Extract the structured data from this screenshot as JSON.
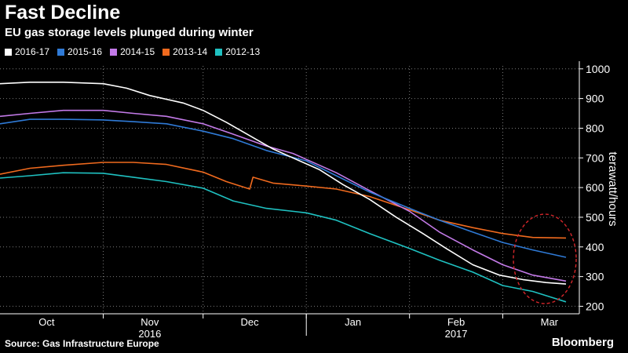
{
  "header": {
    "title": "Fast Decline",
    "subtitle": "EU gas storage levels plunged during winter"
  },
  "footer": {
    "source": "Source: Gas Infrastructure Europe",
    "brand": "Bloomberg"
  },
  "colors": {
    "2016-17": "#ffffff",
    "2015-16": "#2f7ad6",
    "2014-15": "#c37ae8",
    "2013-14": "#f06a1e",
    "2012-13": "#1fc1c1",
    "annotation": "#d4262a",
    "grid": "#7a7a7a"
  },
  "chart_data": {
    "type": "line",
    "title": "Fast Decline",
    "subtitle": "EU gas storage levels plunged during winter",
    "xlabel": "",
    "ylabel": "terawatt/hours",
    "x_ticks": [
      {
        "label": "Oct",
        "year": "",
        "date": "2016-10-15"
      },
      {
        "label": "Nov",
        "year": "2016",
        "date": "2016-11-15"
      },
      {
        "label": "Dec",
        "year": "",
        "date": "2016-12-15"
      },
      {
        "label": "Jan",
        "year": "",
        "date": "2017-01-15"
      },
      {
        "label": "Feb",
        "year": "2017",
        "date": "2017-02-15"
      },
      {
        "label": "Mar",
        "year": "",
        "date": "2017-03-15"
      }
    ],
    "xlim": [
      "2016-10-01",
      "2017-03-24"
    ],
    "y_ticks": [
      200,
      300,
      400,
      500,
      600,
      700,
      800,
      900,
      1000
    ],
    "ylim": [
      180,
      1010
    ],
    "grid": true,
    "legend_position": "top-left",
    "annotation": "dashed red ellipse around mid-to-late March values",
    "series": [
      {
        "name": "2016-17",
        "points": [
          [
            "2016-10-01",
            950
          ],
          [
            "2016-10-10",
            955
          ],
          [
            "2016-10-20",
            955
          ],
          [
            "2016-11-01",
            950
          ],
          [
            "2016-11-08",
            935
          ],
          [
            "2016-11-15",
            910
          ],
          [
            "2016-11-25",
            885
          ],
          [
            "2016-12-01",
            860
          ],
          [
            "2016-12-08",
            820
          ],
          [
            "2016-12-15",
            775
          ],
          [
            "2016-12-22",
            730
          ],
          [
            "2016-12-28",
            700
          ],
          [
            "2017-01-05",
            660
          ],
          [
            "2017-01-12",
            610
          ],
          [
            "2017-01-20",
            560
          ],
          [
            "2017-01-28",
            500
          ],
          [
            "2017-02-05",
            445
          ],
          [
            "2017-02-12",
            395
          ],
          [
            "2017-02-20",
            340
          ],
          [
            "2017-02-28",
            305
          ],
          [
            "2017-03-07",
            290
          ],
          [
            "2017-03-14",
            280
          ],
          [
            "2017-03-20",
            275
          ]
        ]
      },
      {
        "name": "2015-16",
        "points": [
          [
            "2016-10-01",
            815
          ],
          [
            "2016-10-10",
            830
          ],
          [
            "2016-10-20",
            830
          ],
          [
            "2016-11-01",
            828
          ],
          [
            "2016-11-10",
            822
          ],
          [
            "2016-11-20",
            815
          ],
          [
            "2016-12-01",
            790
          ],
          [
            "2016-12-10",
            765
          ],
          [
            "2016-12-20",
            725
          ],
          [
            "2017-01-01",
            690
          ],
          [
            "2017-01-10",
            640
          ],
          [
            "2017-01-20",
            585
          ],
          [
            "2017-02-01",
            530
          ],
          [
            "2017-02-10",
            490
          ],
          [
            "2017-02-20",
            450
          ],
          [
            "2017-03-01",
            415
          ],
          [
            "2017-03-10",
            390
          ],
          [
            "2017-03-20",
            365
          ]
        ]
      },
      {
        "name": "2014-15",
        "points": [
          [
            "2016-10-01",
            840
          ],
          [
            "2016-10-10",
            850
          ],
          [
            "2016-10-20",
            860
          ],
          [
            "2016-11-01",
            860
          ],
          [
            "2016-11-10",
            850
          ],
          [
            "2016-11-20",
            840
          ],
          [
            "2016-12-01",
            815
          ],
          [
            "2016-12-10",
            780
          ],
          [
            "2016-12-20",
            740
          ],
          [
            "2016-12-28",
            715
          ],
          [
            "2016-12-30",
            705
          ],
          [
            "2017-01-01",
            695
          ],
          [
            "2017-01-10",
            650
          ],
          [
            "2017-01-20",
            590
          ],
          [
            "2017-02-01",
            520
          ],
          [
            "2017-02-10",
            450
          ],
          [
            "2017-02-20",
            390
          ],
          [
            "2017-03-01",
            340
          ],
          [
            "2017-03-10",
            305
          ],
          [
            "2017-03-20",
            285
          ]
        ]
      },
      {
        "name": "2013-14",
        "points": [
          [
            "2016-10-01",
            645
          ],
          [
            "2016-10-10",
            665
          ],
          [
            "2016-10-20",
            675
          ],
          [
            "2016-11-01",
            685
          ],
          [
            "2016-11-10",
            685
          ],
          [
            "2016-11-20",
            678
          ],
          [
            "2016-12-01",
            652
          ],
          [
            "2016-12-08",
            620
          ],
          [
            "2016-12-15",
            595
          ],
          [
            "2016-12-16",
            635
          ],
          [
            "2016-12-22",
            615
          ],
          [
            "2017-01-01",
            605
          ],
          [
            "2017-01-10",
            595
          ],
          [
            "2017-01-20",
            570
          ],
          [
            "2017-02-01",
            525
          ],
          [
            "2017-02-10",
            490
          ],
          [
            "2017-02-20",
            465
          ],
          [
            "2017-03-01",
            445
          ],
          [
            "2017-03-10",
            432
          ],
          [
            "2017-03-20",
            430
          ]
        ]
      },
      {
        "name": "2012-13",
        "points": [
          [
            "2016-10-01",
            632
          ],
          [
            "2016-10-10",
            640
          ],
          [
            "2016-10-20",
            650
          ],
          [
            "2016-11-01",
            648
          ],
          [
            "2016-11-10",
            635
          ],
          [
            "2016-11-20",
            620
          ],
          [
            "2016-12-01",
            598
          ],
          [
            "2016-12-10",
            555
          ],
          [
            "2016-12-20",
            530
          ],
          [
            "2017-01-01",
            515
          ],
          [
            "2017-01-10",
            490
          ],
          [
            "2017-01-20",
            445
          ],
          [
            "2017-02-01",
            395
          ],
          [
            "2017-02-10",
            355
          ],
          [
            "2017-02-20",
            315
          ],
          [
            "2017-03-01",
            270
          ],
          [
            "2017-03-10",
            250
          ],
          [
            "2017-03-20",
            215
          ]
        ]
      }
    ]
  }
}
